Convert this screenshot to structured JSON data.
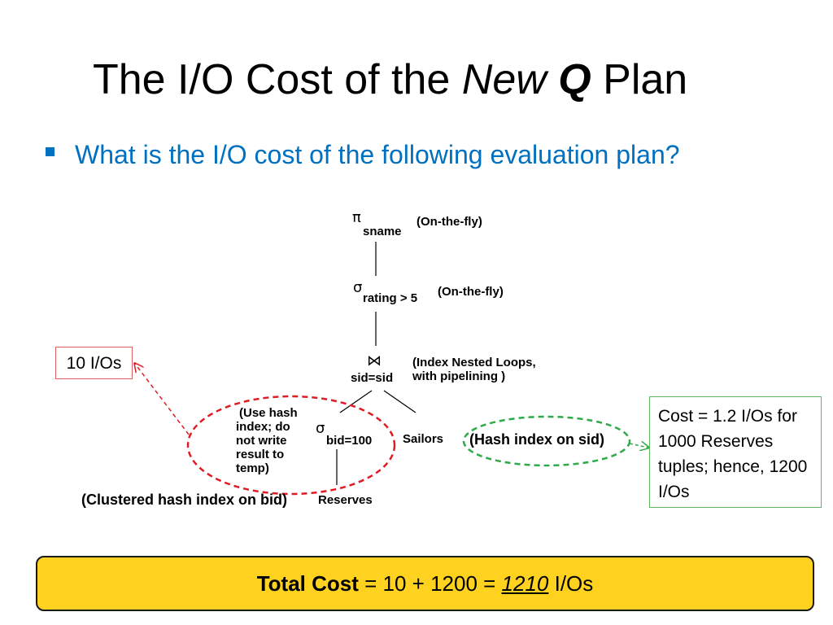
{
  "title": {
    "before": "The I/O Cost of the ",
    "new": "New",
    "q": "Q",
    "after": " Plan"
  },
  "bullet": "What is the I/O cost of the following evaluation plan?",
  "plan": {
    "projection": {
      "symbol": "π",
      "subscript": "sname",
      "annotation": "(On-the-fly)"
    },
    "selection_top": {
      "symbol": "σ",
      "subscript": "rating > 5",
      "annotation": "(On-the-fly)"
    },
    "join": {
      "symbol": "⋈",
      "subscript": "sid=sid",
      "annotation_line1": "(Index Nested Loops,",
      "annotation_line2": "with pipelining )"
    },
    "selection_bid": {
      "symbol": "σ",
      "subscript": "bid=100"
    },
    "hash_note": "(Use hash index; do not write result to temp)",
    "sailors": "Sailors",
    "reserves": "Reserves",
    "hash_index_sid": "(Hash index on sid)",
    "clustered_index": "(Clustered hash index on bid)"
  },
  "left_box": "10 I/Os",
  "right_box": "Cost = 1.2 I/Os for 1000 Reserves tuples; hence, 1200 I/Os",
  "total": {
    "label": "Total Cost",
    "expr": " = 10 + 1200 = ",
    "value": "1210",
    "unit": " I/Os"
  },
  "colors": {
    "accent": "#0070c0",
    "red": "#e01b24",
    "green": "#2eaa4a",
    "yellow": "#ffd21f"
  }
}
